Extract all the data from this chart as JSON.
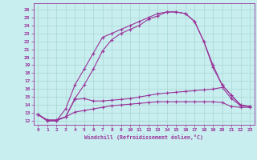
{
  "xlabel": "Windchill (Refroidissement éolien,°C)",
  "bg_color": "#c8eef0",
  "grid_color": "#a8d8d0",
  "line_color": "#993399",
  "x_ticks": [
    0,
    1,
    2,
    3,
    4,
    5,
    6,
    7,
    8,
    9,
    10,
    11,
    12,
    13,
    14,
    15,
    16,
    17,
    18,
    19,
    20,
    21,
    22,
    23
  ],
  "y_ticks": [
    12,
    13,
    14,
    15,
    16,
    17,
    18,
    19,
    20,
    21,
    22,
    23,
    24,
    25,
    26
  ],
  "ylim": [
    11.5,
    26.8
  ],
  "xlim": [
    -0.5,
    23.5
  ],
  "line1_x": [
    0,
    1,
    2,
    3,
    4,
    5,
    6,
    7,
    8,
    9,
    10,
    11,
    12,
    13,
    14,
    15,
    16,
    17,
    18,
    19,
    20,
    21,
    22,
    23
  ],
  "line1_y": [
    12.8,
    12.0,
    12.0,
    13.5,
    16.5,
    18.5,
    20.5,
    22.5,
    23.0,
    23.5,
    24.0,
    24.5,
    25.0,
    25.5,
    25.7,
    25.7,
    25.5,
    24.5,
    22.0,
    19.0,
    16.5,
    15.2,
    14.0,
    13.8
  ],
  "line2_x": [
    0,
    1,
    2,
    3,
    4,
    5,
    6,
    7,
    8,
    9,
    10,
    11,
    12,
    13,
    14,
    15,
    16,
    17,
    18,
    19,
    20,
    21,
    22,
    23
  ],
  "line2_y": [
    12.8,
    12.0,
    12.0,
    12.5,
    14.8,
    16.5,
    18.5,
    20.8,
    22.2,
    23.0,
    23.5,
    24.0,
    24.8,
    25.2,
    25.7,
    25.7,
    25.5,
    24.5,
    22.0,
    18.7,
    16.5,
    15.2,
    14.0,
    13.8
  ],
  "line3_x": [
    0,
    1,
    2,
    3,
    4,
    5,
    6,
    7,
    8,
    9,
    10,
    11,
    12,
    13,
    14,
    15,
    16,
    17,
    18,
    19,
    20,
    21,
    22,
    23
  ],
  "line3_y": [
    12.8,
    12.1,
    12.1,
    12.5,
    14.7,
    14.8,
    14.5,
    14.5,
    14.6,
    14.7,
    14.8,
    15.0,
    15.2,
    15.4,
    15.5,
    15.6,
    15.7,
    15.8,
    15.9,
    16.0,
    16.2,
    14.8,
    13.9,
    13.8
  ],
  "line4_x": [
    0,
    1,
    2,
    3,
    4,
    5,
    6,
    7,
    8,
    9,
    10,
    11,
    12,
    13,
    14,
    15,
    16,
    17,
    18,
    19,
    20,
    21,
    22,
    23
  ],
  "line4_y": [
    12.8,
    12.1,
    12.1,
    12.5,
    13.1,
    13.3,
    13.5,
    13.7,
    13.9,
    14.0,
    14.1,
    14.2,
    14.3,
    14.4,
    14.4,
    14.4,
    14.4,
    14.4,
    14.4,
    14.4,
    14.3,
    13.8,
    13.7,
    13.7
  ]
}
